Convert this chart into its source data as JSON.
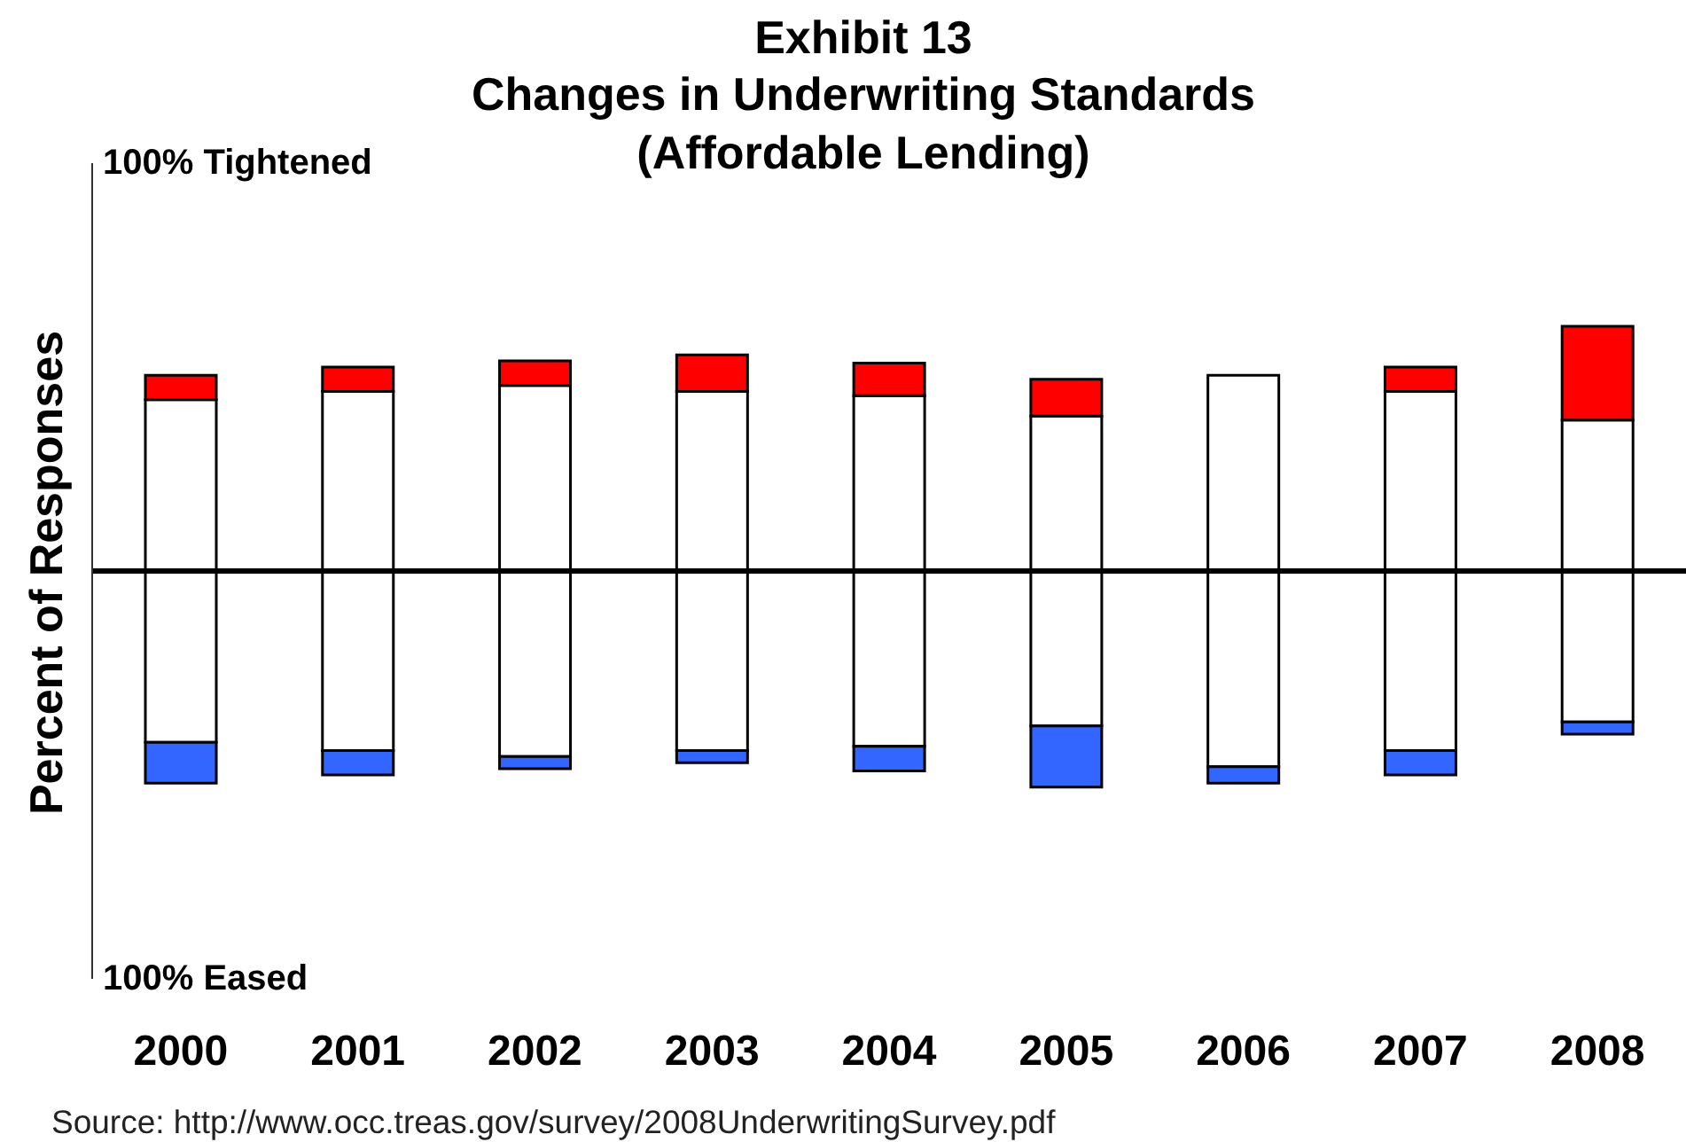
{
  "chart_data": {
    "type": "bar",
    "title": "Exhibit 13\nChanges in Underwriting Standards\n(Affordable Lending)",
    "ylabel": "Percent of Responses",
    "annotations": [
      "Source: http://www.occ.treas.gov/survey/2008UnderwritingSurvey.pdf"
    ],
    "categories": [
      "2000",
      "2001",
      "2002",
      "2003",
      "2004",
      "2005",
      "2006",
      "2007",
      "2008"
    ],
    "series": [
      {
        "color": "#ffffff",
        "values": [
          42,
          44,
          45.5,
          44,
          43,
          38,
          48,
          44,
          37
        ]
      },
      {
        "color": "#ff0000",
        "values": [
          6,
          6,
          6,
          9,
          8,
          9,
          0,
          6,
          23
        ]
      },
      {
        "color": "#ffffff",
        "values": [
          -42,
          -44,
          -45.5,
          -44,
          -43,
          -38,
          -48,
          -44,
          -37
        ]
      },
      {
        "color": "#3366ff",
        "values": [
          -10,
          -6,
          -3,
          -3,
          -6,
          -15,
          -4,
          -6,
          -3
        ]
      }
    ],
    "stacked": true,
    "ylim": [
      -100,
      100
    ],
    "yticks": [
      {
        "value": 100,
        "label": "100% Tightened"
      },
      {
        "value": -100,
        "label": "100% Eased"
      }
    ]
  }
}
